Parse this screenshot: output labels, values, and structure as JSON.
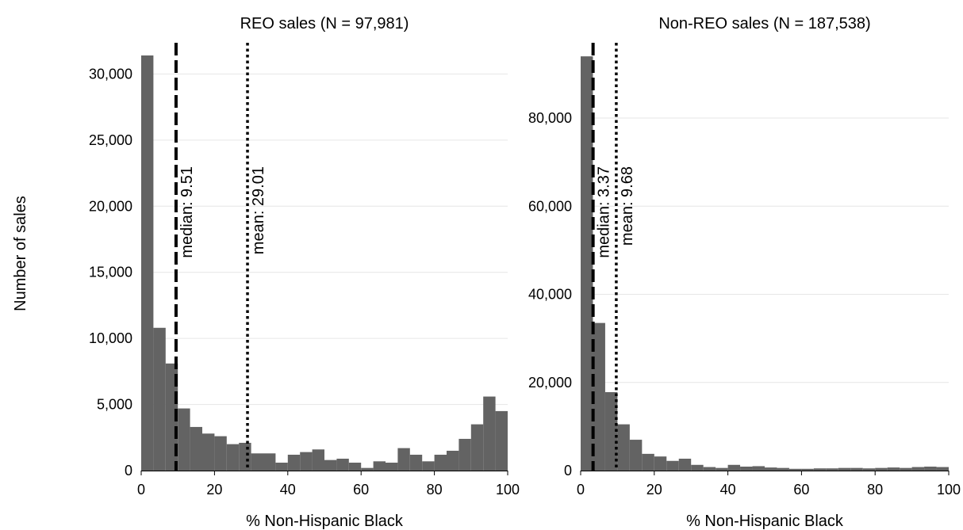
{
  "shared_ylabel": "Number of sales",
  "chart_data": [
    {
      "type": "bar",
      "title": "REO sales (N = 97,981)",
      "xlabel": "% Non-Hispanic Black",
      "ylabel": "Number of sales",
      "xlim": [
        0,
        100
      ],
      "ylim": [
        0,
        32000
      ],
      "bin_width": 3.33,
      "x_ticks": [
        0,
        20,
        40,
        60,
        80,
        100
      ],
      "x_tick_labels": [
        "0",
        "20",
        "40",
        "60",
        "80",
        "100"
      ],
      "y_ticks": [
        0,
        5000,
        10000,
        15000,
        20000,
        25000,
        30000
      ],
      "y_tick_labels": [
        "0",
        "5,000",
        "10,000",
        "15,000",
        "20,000",
        "25,000",
        "30,000"
      ],
      "grid": true,
      "values": [
        31400,
        10800,
        8100,
        4700,
        3300,
        2800,
        2600,
        2000,
        2100,
        1300,
        1300,
        600,
        1200,
        1400,
        1600,
        800,
        900,
        600,
        200,
        700,
        600,
        1700,
        1200,
        700,
        1200,
        1500,
        2400,
        3500,
        5600,
        4500
      ],
      "annotations": [
        {
          "text": "median: 9.51",
          "x": 9.51,
          "style": "dashed"
        },
        {
          "text": "mean: 29.01",
          "x": 29.01,
          "style": "dotted"
        }
      ]
    },
    {
      "type": "bar",
      "title": "Non-REO sales (N = 187,538)",
      "xlabel": "% Non-Hispanic Black",
      "ylabel": "Number of sales",
      "xlim": [
        0,
        100
      ],
      "ylim": [
        0,
        96000
      ],
      "bin_width": 3.33,
      "x_ticks": [
        0,
        20,
        40,
        60,
        80,
        100
      ],
      "x_tick_labels": [
        "0",
        "20",
        "40",
        "60",
        "80",
        "100"
      ],
      "y_ticks": [
        0,
        20000,
        40000,
        60000,
        80000
      ],
      "y_tick_labels": [
        "0",
        "20,000",
        "40,000",
        "60,000",
        "80,000"
      ],
      "grid": true,
      "values": [
        94000,
        33500,
        17800,
        10500,
        7000,
        3800,
        3200,
        2200,
        2700,
        1300,
        800,
        600,
        1300,
        900,
        1000,
        700,
        600,
        400,
        400,
        500,
        500,
        600,
        600,
        500,
        600,
        700,
        600,
        800,
        900,
        800
      ],
      "annotations": [
        {
          "text": "median: 3.37",
          "x": 3.37,
          "style": "dashed"
        },
        {
          "text": "mean: 9.68",
          "x": 9.68,
          "style": "dotted"
        }
      ]
    }
  ]
}
